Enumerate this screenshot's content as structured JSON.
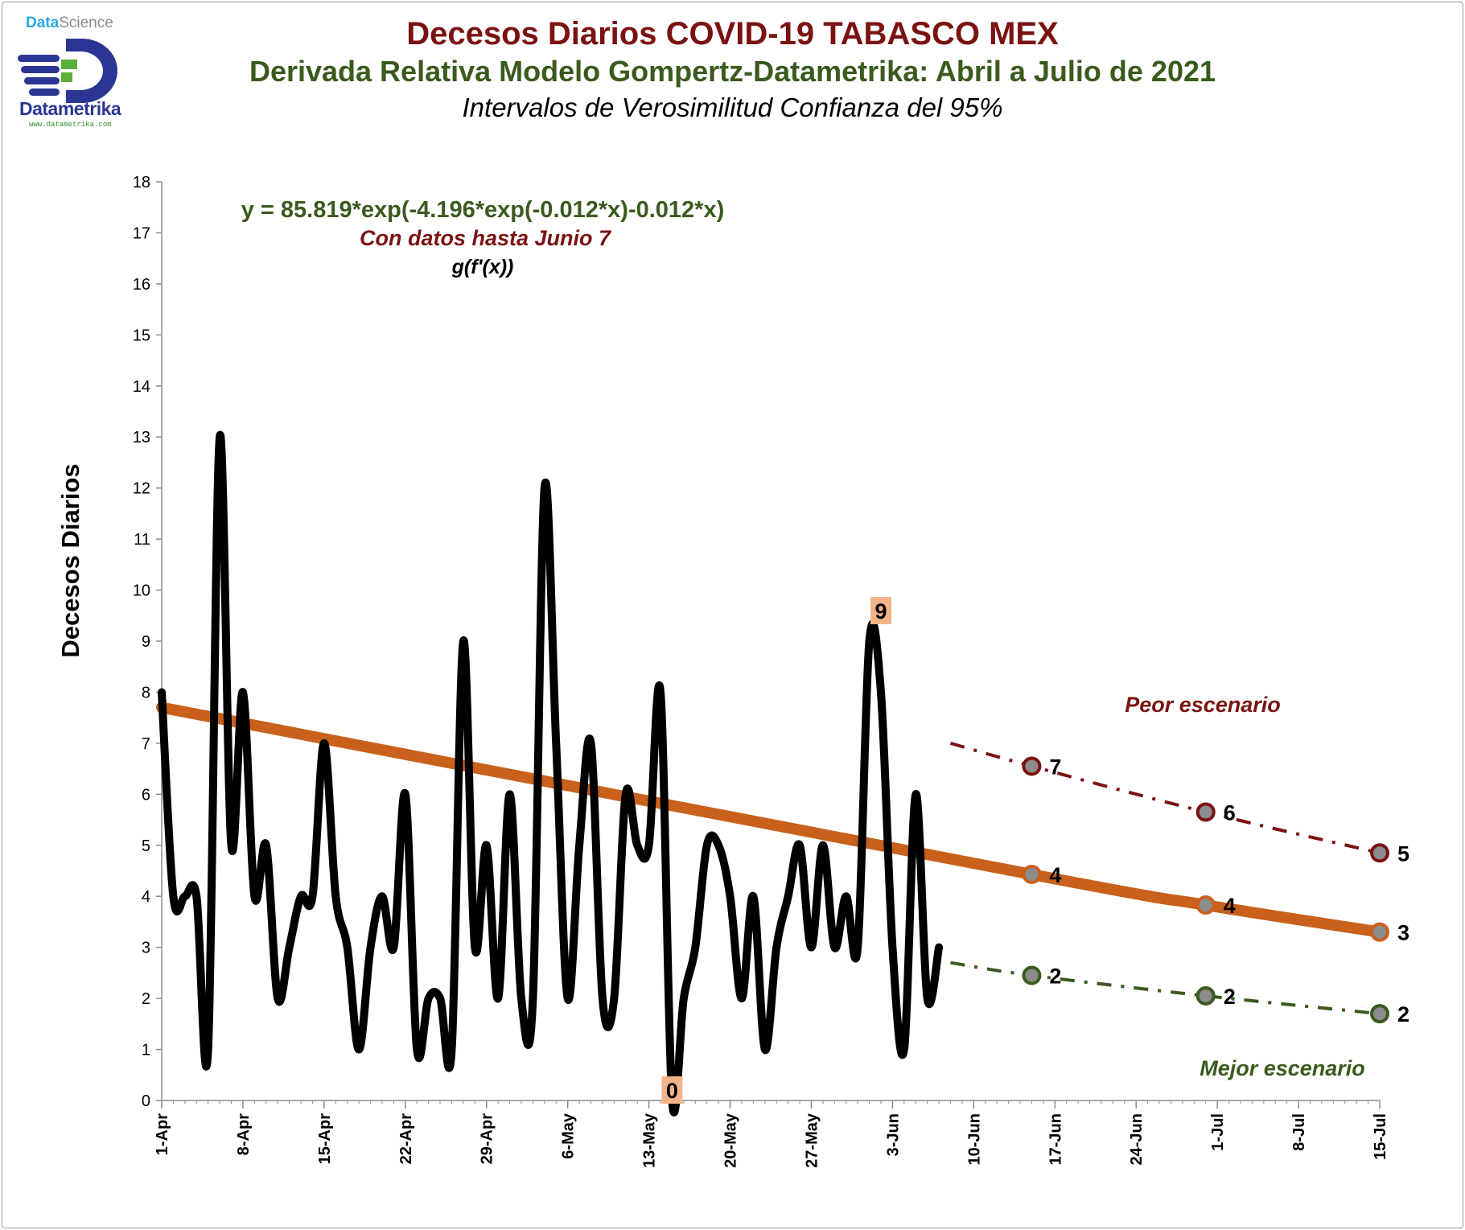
{
  "titles": {
    "main": "Decesos Diarios COVID-19 TABASCO MEX",
    "main_color": "#7b1212",
    "subtitle": "Derivada Relativa Modelo Gompertz-Datametrika: Abril a Julio de 2021",
    "subtitle_color": "#3a5a1e",
    "note": "Intervalos de Verosimilitud Confianza del 95%"
  },
  "logo": {
    "top_prefix": "Data",
    "top_suffix": "Science",
    "brand": "Datametrika",
    "url": "www.datametrika.com"
  },
  "chart_data": {
    "type": "line",
    "ylabel": "Decesos Diarios",
    "xlabel": "",
    "ylim": [
      0,
      18
    ],
    "y_ticks": [
      0,
      1,
      2,
      3,
      4,
      5,
      6,
      7,
      8,
      9,
      10,
      11,
      12,
      13,
      14,
      15,
      16,
      17,
      18
    ],
    "x_range_days": [
      "1-Apr",
      "15-Jul"
    ],
    "x_ticks": [
      "1-Apr",
      "8-Apr",
      "15-Apr",
      "22-Apr",
      "29-Apr",
      "6-May",
      "13-May",
      "20-May",
      "27-May",
      "3-Jun",
      "10-Jun",
      "17-Jun",
      "24-Jun",
      "1-Jul",
      "8-Jul",
      "15-Jul"
    ],
    "grid": false,
    "annotations": {
      "equation": "y = 85.819*exp(-4.196*exp(-0.012*x)-0.012*x)",
      "equation_color": "#3a5a1e",
      "data_note": "Con datos hasta Junio 7",
      "data_note_color": "#7b1212",
      "function_note": "g(f'(x))",
      "worst_label": "Peor escenario",
      "worst_color": "#7b1212",
      "best_label": "Mejor escenario",
      "best_color": "#3a5a1e",
      "max_label": "9",
      "min_label": "0"
    },
    "series": [
      {
        "color": "#000000",
        "x": [
          "1-Apr",
          "2-Apr",
          "3-Apr",
          "4-Apr",
          "5-Apr",
          "6-Apr",
          "7-Apr",
          "8-Apr",
          "9-Apr",
          "10-Apr",
          "11-Apr",
          "12-Apr",
          "13-Apr",
          "14-Apr",
          "15-Apr",
          "16-Apr",
          "17-Apr",
          "18-Apr",
          "19-Apr",
          "20-Apr",
          "21-Apr",
          "22-Apr",
          "23-Apr",
          "24-Apr",
          "25-Apr",
          "26-Apr",
          "27-Apr",
          "28-Apr",
          "29-Apr",
          "30-Apr",
          "1-May",
          "2-May",
          "3-May",
          "4-May",
          "5-May",
          "6-May",
          "7-May",
          "8-May",
          "9-May",
          "10-May",
          "11-May",
          "12-May",
          "13-May",
          "14-May",
          "15-May",
          "16-May",
          "17-May",
          "18-May",
          "19-May",
          "20-May",
          "21-May",
          "22-May",
          "23-May",
          "24-May",
          "25-May",
          "26-May",
          "27-May",
          "28-May",
          "29-May",
          "30-May",
          "31-May",
          "1-Jun",
          "2-Jun",
          "3-Jun",
          "4-Jun",
          "5-Jun",
          "6-Jun",
          "7-Jun"
        ],
        "values": [
          8,
          4,
          4,
          4,
          1,
          13,
          5,
          8,
          4,
          5,
          2,
          3,
          4,
          4,
          7,
          4,
          3,
          1,
          3,
          4,
          3,
          6,
          1,
          2,
          2,
          1,
          9,
          3,
          5,
          2,
          6,
          2,
          2,
          12,
          7,
          2,
          5,
          7,
          2,
          2,
          6,
          5,
          5,
          8,
          0,
          2,
          3,
          5,
          5,
          4,
          2,
          4,
          1,
          3,
          4,
          5,
          3,
          5,
          3,
          4,
          3,
          9,
          8,
          3,
          1,
          6,
          2,
          3
        ]
      },
      {
        "color": "#c9601b",
        "x": [
          "1-Apr",
          "15-Jun",
          "30-Jun",
          "15-Jul"
        ],
        "values": [
          7.7,
          4.43,
          3.83,
          3.3
        ],
        "point_labels": [
          "",
          "4",
          "4",
          "3"
        ]
      },
      {
        "color": "#7b1212",
        "x": [
          "8-Jun",
          "15-Jun",
          "30-Jun",
          "15-Jul"
        ],
        "values": [
          7.0,
          6.55,
          5.65,
          4.85
        ],
        "point_labels": [
          "",
          "7",
          "6",
          "5"
        ]
      },
      {
        "color": "#3a5a1e",
        "x": [
          "8-Jun",
          "15-Jun",
          "30-Jun",
          "15-Jul"
        ],
        "values": [
          2.7,
          2.45,
          2.05,
          1.7
        ],
        "point_labels": [
          "",
          "2",
          "2",
          "2"
        ]
      }
    ]
  }
}
